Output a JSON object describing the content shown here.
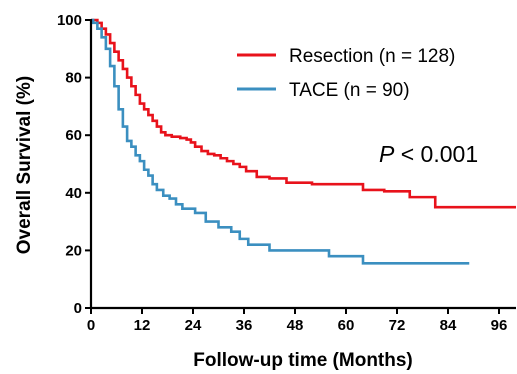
{
  "chart_data": {
    "type": "line",
    "xlabel": "Follow-up time (Months)",
    "ylabel": "Overall Survival (%)",
    "xlim": [
      0,
      100
    ],
    "ylim": [
      0,
      100
    ],
    "x_ticks": [
      0,
      12,
      24,
      36,
      48,
      60,
      72,
      84,
      96
    ],
    "y_ticks": [
      0,
      20,
      40,
      60,
      80,
      100
    ],
    "x_tick_labels": [
      "0",
      "12",
      "24",
      "36",
      "48",
      "60",
      "72",
      "84",
      "96"
    ],
    "y_tick_labels": [
      "0",
      "20",
      "40",
      "60",
      "80",
      "100"
    ],
    "legend_position": "top-right",
    "annotation": {
      "italic": "P",
      "rest": " < 0.001"
    },
    "series": [
      {
        "name": "Resection (n = 128)",
        "color": "#e8121b",
        "x": [
          0,
          1.5,
          2.5,
          3.5,
          4.5,
          5.5,
          6.5,
          7.5,
          8.5,
          9.5,
          10.5,
          11.5,
          12.5,
          13.5,
          14.5,
          15.5,
          16.5,
          17.5,
          19,
          21,
          22.5,
          23.5,
          24.5,
          26,
          27.5,
          29,
          30.5,
          32,
          33.5,
          35,
          36.5,
          39,
          42,
          46,
          52,
          60,
          64,
          69,
          75,
          81,
          100
        ],
        "y": [
          100,
          99,
          97,
          95,
          92,
          89,
          86,
          83,
          80,
          77,
          74,
          71,
          69,
          67,
          65,
          63,
          61,
          60,
          59.5,
          59,
          58.5,
          57.5,
          56,
          54.5,
          53.5,
          53,
          52,
          51,
          50,
          49,
          47.5,
          45.5,
          45,
          43.5,
          43,
          43,
          41,
          40.5,
          38.5,
          35,
          35
        ]
      },
      {
        "name": "TACE (n = 90)",
        "color": "#3b8fc0",
        "x": [
          0,
          0.5,
          1.5,
          2.5,
          3.5,
          4.5,
          5.5,
          6.5,
          7.5,
          8.5,
          9.5,
          10.5,
          11.5,
          12.5,
          13.5,
          14.5,
          15.5,
          17,
          18.5,
          20,
          21.5,
          24.5,
          27,
          30,
          33,
          35,
          37,
          42,
          48,
          56,
          64,
          89
        ],
        "y": [
          100,
          99,
          97,
          94,
          90,
          84,
          77,
          69,
          63,
          58,
          56,
          53,
          51,
          48,
          46,
          43,
          41,
          39,
          38,
          36,
          34.5,
          33,
          30,
          28,
          26.5,
          24,
          22,
          20,
          20,
          18,
          15.5,
          15.5
        ]
      }
    ]
  }
}
